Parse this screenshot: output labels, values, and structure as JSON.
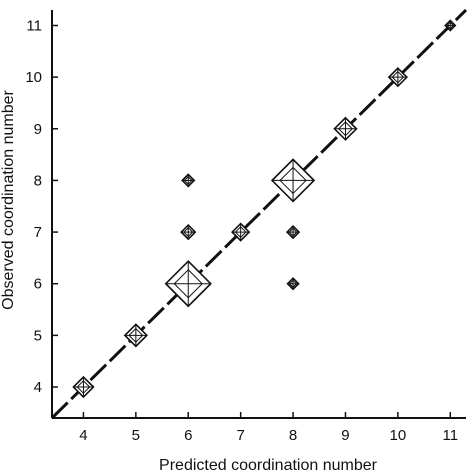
{
  "chart_data": {
    "type": "scatter",
    "xlabel": "Predicted coordination number",
    "ylabel": "Observed coordination number",
    "xlim": [
      3.4,
      11.3
    ],
    "ylim": [
      3.4,
      11.3
    ],
    "xticks": [
      4,
      5,
      6,
      7,
      8,
      9,
      10,
      11
    ],
    "yticks": [
      4,
      5,
      6,
      7,
      8,
      9,
      10,
      11
    ],
    "points": [
      {
        "x": 4,
        "y": 4,
        "relative_size": 1.0
      },
      {
        "x": 5,
        "y": 5,
        "relative_size": 1.1
      },
      {
        "x": 6,
        "y": 6,
        "relative_size": 2.25
      },
      {
        "x": 6,
        "y": 7,
        "relative_size": 0.7
      },
      {
        "x": 6,
        "y": 8,
        "relative_size": 0.6
      },
      {
        "x": 7,
        "y": 7,
        "relative_size": 0.85
      },
      {
        "x": 8,
        "y": 8,
        "relative_size": 2.1
      },
      {
        "x": 8,
        "y": 7,
        "relative_size": 0.6
      },
      {
        "x": 8,
        "y": 6,
        "relative_size": 0.55
      },
      {
        "x": 9,
        "y": 9,
        "relative_size": 1.1
      },
      {
        "x": 10,
        "y": 10,
        "relative_size": 0.9
      },
      {
        "x": 11,
        "y": 11,
        "relative_size": 0.5
      }
    ],
    "reference_line": {
      "from": [
        3.4,
        3.4
      ],
      "to": [
        11.3,
        11.3
      ],
      "style": "dashed"
    },
    "grid": false
  }
}
